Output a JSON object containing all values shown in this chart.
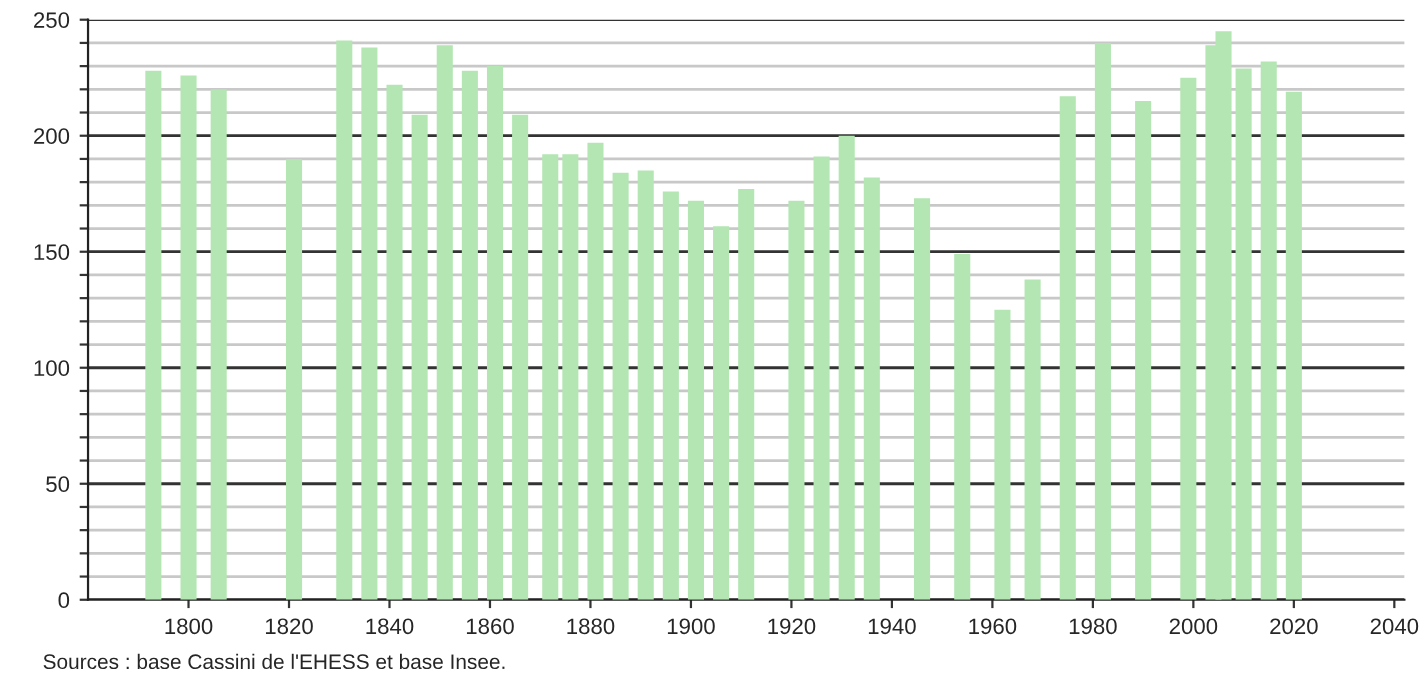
{
  "chart_data": {
    "type": "bar",
    "color": "#b3e6b3",
    "x": [
      1793,
      1800,
      1806,
      1821,
      1831,
      1836,
      1841,
      1846,
      1851,
      1856,
      1861,
      1866,
      1872,
      1876,
      1881,
      1886,
      1891,
      1896,
      1901,
      1906,
      1911,
      1921,
      1926,
      1931,
      1936,
      1946,
      1954,
      1962,
      1968,
      1975,
      1982,
      1990,
      1999,
      2004,
      2006,
      2010,
      2015,
      2020
    ],
    "values": [
      228,
      226,
      220,
      190,
      241,
      238,
      222,
      209,
      239,
      228,
      230,
      209,
      192,
      192,
      197,
      184,
      185,
      176,
      172,
      161,
      177,
      172,
      191,
      200,
      182,
      173,
      149,
      125,
      138,
      217,
      240,
      215,
      225,
      239,
      245,
      229,
      232,
      219
    ],
    "xlim": [
      1780,
      2042
    ],
    "xticks": [
      1800,
      1820,
      1840,
      1860,
      1880,
      1900,
      1920,
      1940,
      1960,
      1980,
      2000,
      2020,
      2040
    ],
    "ylim": [
      0,
      250
    ],
    "yticks": [
      0,
      {
        "value": 10,
        "label": null
      },
      {
        "value": 20,
        "label": null
      },
      {
        "value": 30,
        "label": null
      },
      {
        "value": 40,
        "label": null
      },
      50,
      {
        "value": 60,
        "label": null
      },
      {
        "value": 70,
        "label": null
      },
      {
        "value": 80,
        "label": null
      },
      {
        "value": 90,
        "label": null
      },
      100,
      {
        "value": 110,
        "label": null
      },
      {
        "value": 120,
        "label": null
      },
      {
        "value": 130,
        "label": null
      },
      {
        "value": 140,
        "label": null
      },
      150,
      {
        "value": 160,
        "label": null
      },
      {
        "value": 170,
        "label": null
      },
      {
        "value": 180,
        "label": null
      },
      {
        "value": 190,
        "label": null
      },
      200,
      {
        "value": 210,
        "label": null
      },
      {
        "value": 220,
        "label": null
      },
      {
        "value": 230,
        "label": null
      },
      {
        "value": 240,
        "label": null
      },
      250
    ],
    "grid": "y",
    "annotations": [
      "Sources : base Cassini de l'EHESS et base Insee."
    ]
  }
}
